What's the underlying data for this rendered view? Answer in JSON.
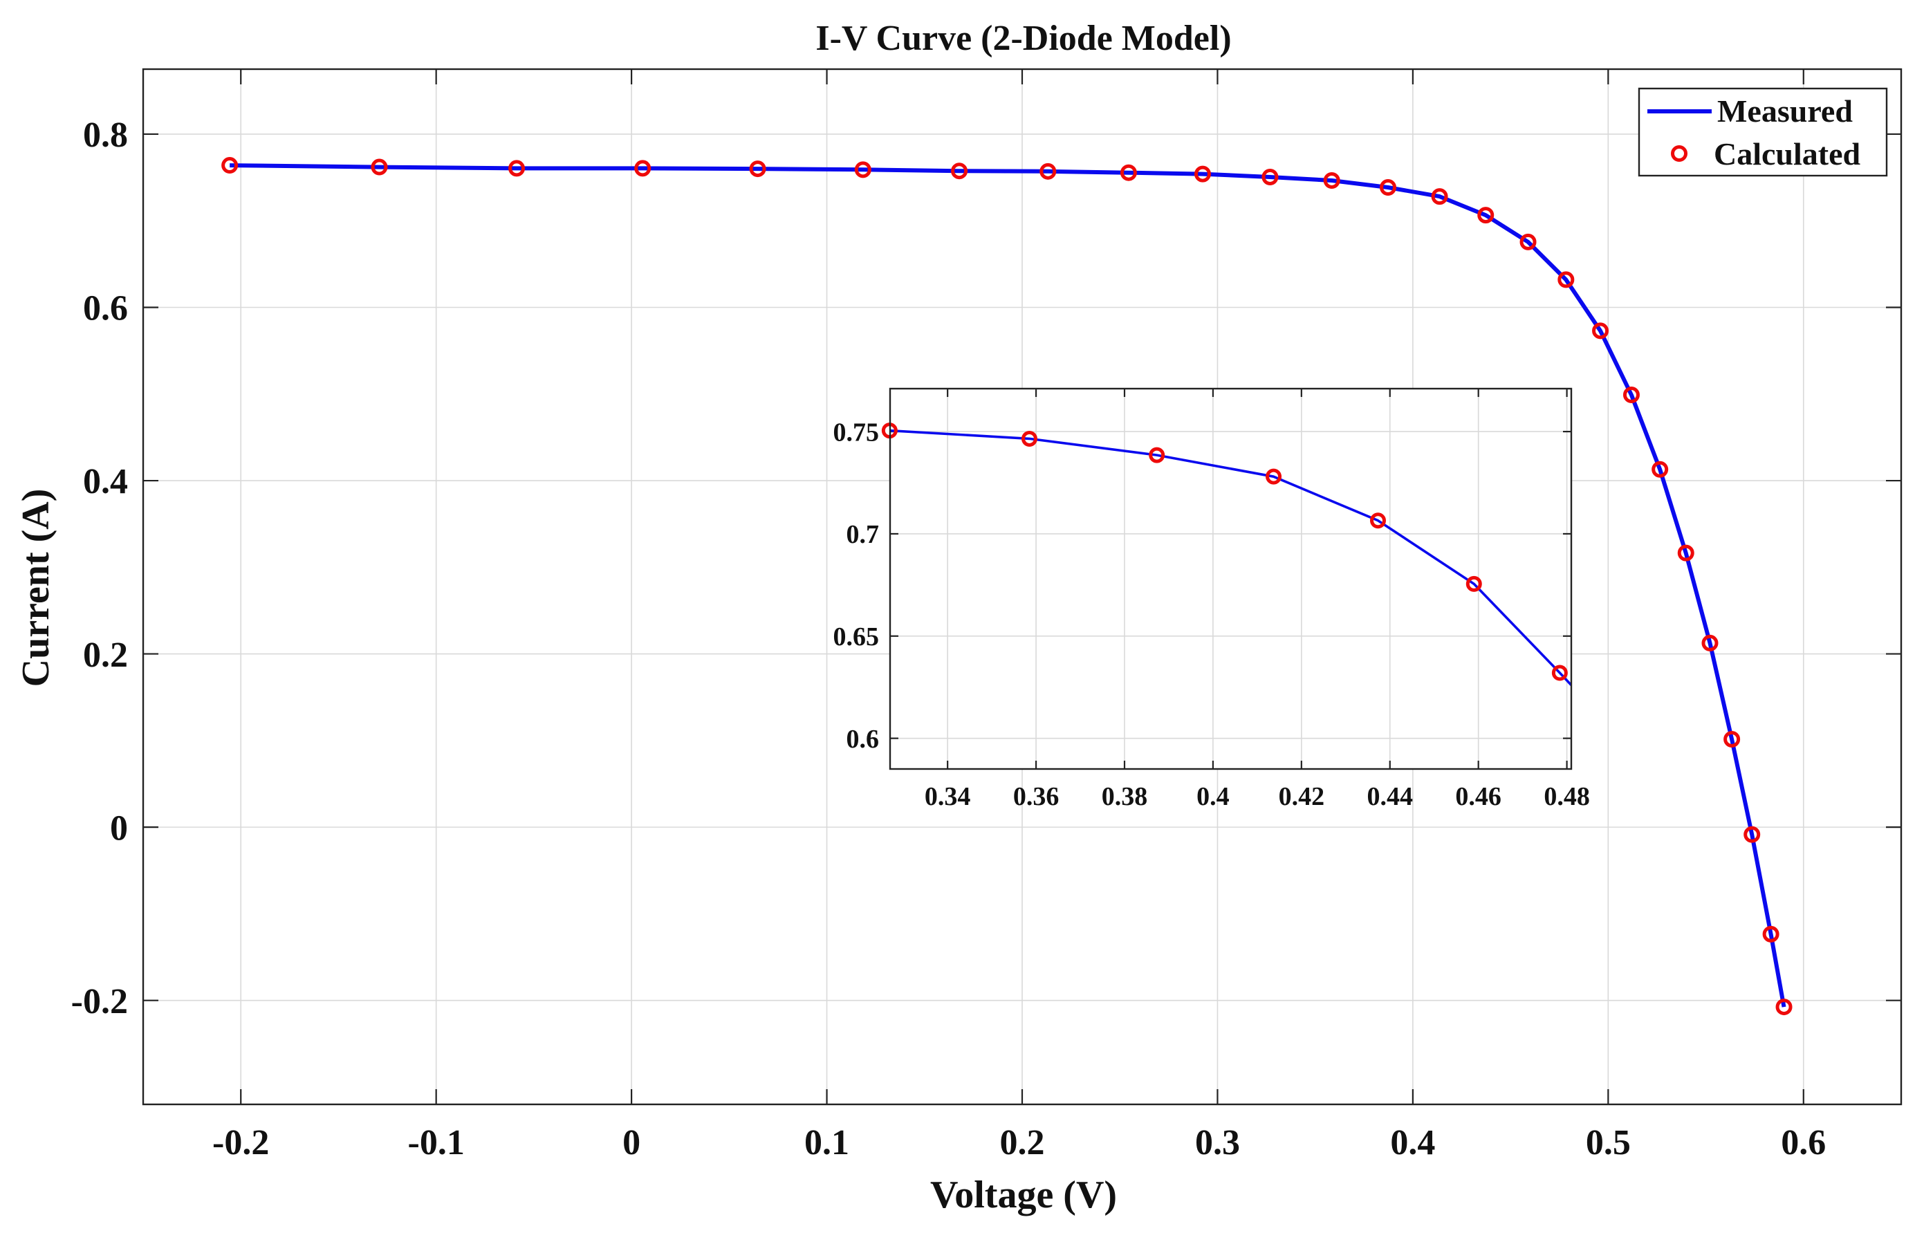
{
  "chart_data": [
    {
      "id": "main",
      "type": "line",
      "title": "I-V Curve (2-Diode Model)",
      "xlabel": "Voltage (V)",
      "ylabel": "Current (A)",
      "xlim": [
        -0.25,
        0.65
      ],
      "ylim": [
        -0.32,
        0.875
      ],
      "xticks": [
        -0.2,
        -0.1,
        0,
        0.1,
        0.2,
        0.3,
        0.4,
        0.5,
        0.6
      ],
      "xtick_labels": [
        "-0.2",
        "-0.1",
        "0",
        "0.1",
        "0.2",
        "0.3",
        "0.4",
        "0.5",
        "0.6"
      ],
      "yticks": [
        -0.2,
        0,
        0.2,
        0.4,
        0.6,
        0.8
      ],
      "ytick_labels": [
        "-0.2",
        "0",
        "0.2",
        "0.4",
        "0.6",
        "0.8"
      ],
      "grid": true,
      "legend_position": "top-right",
      "series": [
        {
          "name": "Measured",
          "style": "line",
          "color": "#0a0aee",
          "x": [
            -0.2057,
            -0.1291,
            -0.0588,
            0.0057,
            0.0646,
            0.1185,
            0.1678,
            0.2132,
            0.2545,
            0.2924,
            0.3269,
            0.3585,
            0.3873,
            0.4137,
            0.4373,
            0.459,
            0.4784,
            0.496,
            0.5119,
            0.5265,
            0.5398,
            0.5521,
            0.5633,
            0.5736,
            0.5833,
            0.59
          ],
          "y": [
            0.764,
            0.762,
            0.7605,
            0.7605,
            0.76,
            0.759,
            0.7575,
            0.757,
            0.7555,
            0.754,
            0.7505,
            0.7465,
            0.7385,
            0.728,
            0.7065,
            0.6755,
            0.632,
            0.573,
            0.499,
            0.413,
            0.3165,
            0.2125,
            0.1015,
            -0.0085,
            -0.1235,
            -0.2075
          ]
        },
        {
          "name": "Calculated",
          "style": "marker",
          "color": "#ee0a0a",
          "x": [
            -0.2057,
            -0.1291,
            -0.0588,
            0.0057,
            0.0646,
            0.1185,
            0.1678,
            0.2132,
            0.2545,
            0.2924,
            0.3269,
            0.3585,
            0.3873,
            0.4137,
            0.4373,
            0.459,
            0.4784,
            0.496,
            0.5119,
            0.5265,
            0.5398,
            0.5521,
            0.5633,
            0.5736,
            0.5833,
            0.59
          ],
          "y": [
            0.764,
            0.762,
            0.7605,
            0.7605,
            0.76,
            0.759,
            0.7575,
            0.757,
            0.7555,
            0.754,
            0.7505,
            0.7465,
            0.7385,
            0.728,
            0.7065,
            0.6755,
            0.632,
            0.573,
            0.499,
            0.413,
            0.3165,
            0.2125,
            0.1015,
            -0.0085,
            -0.1235,
            -0.2075
          ]
        }
      ]
    },
    {
      "id": "inset",
      "type": "line",
      "title": "",
      "xlabel": "",
      "ylabel": "",
      "xlim": [
        0.327,
        0.481
      ],
      "ylim": [
        0.585,
        0.771
      ],
      "xticks": [
        0.34,
        0.36,
        0.38,
        0.4,
        0.42,
        0.44,
        0.46,
        0.48
      ],
      "xtick_labels": [
        "0.34",
        "0.36",
        "0.38",
        "0.4",
        "0.42",
        "0.44",
        "0.46",
        "0.48"
      ],
      "yticks": [
        0.6,
        0.65,
        0.7,
        0.75
      ],
      "ytick_labels": [
        "0.6",
        "0.65",
        "0.7",
        "0.75"
      ],
      "grid": true,
      "series": [
        {
          "name": "Measured",
          "style": "line",
          "color": "#0a0aee",
          "x": [
            0.3269,
            0.3585,
            0.3873,
            0.4137,
            0.4373,
            0.459,
            0.4784,
            0.481
          ],
          "y": [
            0.7505,
            0.7465,
            0.7385,
            0.728,
            0.7065,
            0.6755,
            0.632,
            0.626
          ]
        },
        {
          "name": "Calculated",
          "style": "marker",
          "color": "#ee0a0a",
          "x": [
            0.3269,
            0.3585,
            0.3873,
            0.4137,
            0.4373,
            0.459,
            0.4784
          ],
          "y": [
            0.7505,
            0.7465,
            0.7385,
            0.728,
            0.7065,
            0.6755,
            0.632
          ]
        }
      ]
    }
  ]
}
